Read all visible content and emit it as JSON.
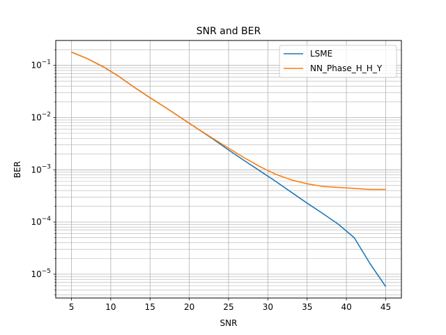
{
  "chart_data": {
    "type": "line",
    "title": "SNR and BER",
    "xlabel": "SNR",
    "ylabel": "BER",
    "xlim": [
      3,
      47
    ],
    "ylim": [
      3.5e-06,
      0.3
    ],
    "yscale": "log",
    "x_ticks": [
      5,
      10,
      15,
      20,
      25,
      30,
      35,
      40,
      45
    ],
    "grid": {
      "major": true,
      "minor_y": true
    },
    "legend": {
      "position": "top-right"
    },
    "x": [
      5,
      7,
      9,
      11,
      13,
      15,
      17,
      19,
      21,
      23,
      25,
      27,
      29,
      31,
      33,
      35,
      37,
      39,
      41,
      43,
      45
    ],
    "series": [
      {
        "name": "LSME",
        "color": "#1f77b4",
        "values": [
          0.18,
          0.135,
          0.095,
          0.062,
          0.038,
          0.024,
          0.0155,
          0.0098,
          0.0062,
          0.0039,
          0.0024,
          0.0015,
          0.00095,
          0.0006,
          0.00037,
          0.00023,
          0.000145,
          9e-05,
          5e-05,
          1.6e-05,
          5.8e-06
        ]
      },
      {
        "name": "NN_Phase_H_H_Y",
        "color": "#ff7f0e",
        "values": [
          0.18,
          0.135,
          0.095,
          0.062,
          0.038,
          0.024,
          0.0155,
          0.0098,
          0.0062,
          0.004,
          0.0026,
          0.0017,
          0.00115,
          0.00082,
          0.00064,
          0.00054,
          0.00048,
          0.00046,
          0.00044,
          0.00042,
          0.00042
        ]
      }
    ]
  }
}
